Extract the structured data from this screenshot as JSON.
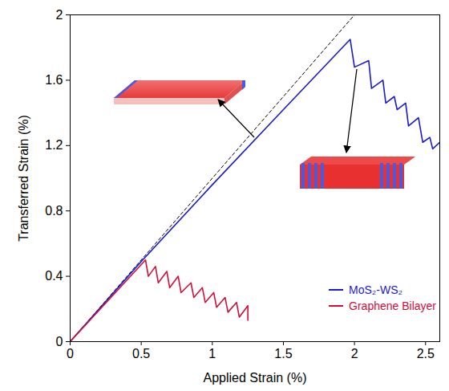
{
  "chart_data": {
    "type": "line",
    "x_label": "Applied Strain (%)",
    "y_label": "Transferred Strain (%)",
    "xlim": [
      0,
      2.6
    ],
    "xticks": [
      0,
      0.5,
      1,
      1.5,
      2,
      2.5
    ],
    "ylim": [
      0,
      2
    ],
    "yticks": [
      0,
      0.4,
      0.8,
      1.2,
      1.6,
      2
    ],
    "grid": false,
    "legend": "lower right",
    "series": [
      {
        "color": "#000000",
        "line_style": "dashed",
        "x": [
          0,
          2
        ],
        "values": [
          0,
          2
        ]
      },
      {
        "name": "MoS₂-WS₂",
        "color": "#1a1acc",
        "line_style": "solid",
        "x": [
          0,
          0.5,
          1.0,
          1.5,
          1.97,
          2.0,
          2.1,
          2.12,
          2.2,
          2.22,
          2.28,
          2.3,
          2.36,
          2.38,
          2.45,
          2.48,
          2.53,
          2.55,
          2.6
        ],
        "values": [
          0,
          0.49,
          0.96,
          1.42,
          1.85,
          1.68,
          1.72,
          1.55,
          1.6,
          1.46,
          1.5,
          1.42,
          1.46,
          1.32,
          1.37,
          1.22,
          1.25,
          1.18,
          1.22
        ]
      },
      {
        "name": "Graphene Bilayer",
        "color": "#d0103a",
        "line_style": "solid",
        "x": [
          0,
          0.53,
          0.55,
          0.6,
          0.62,
          0.68,
          0.7,
          0.76,
          0.78,
          0.85,
          0.87,
          0.93,
          0.95,
          1.01,
          1.03,
          1.09,
          1.11,
          1.17,
          1.19,
          1.25,
          1.25
        ],
        "values": [
          0,
          0.5,
          0.4,
          0.46,
          0.36,
          0.43,
          0.33,
          0.4,
          0.3,
          0.36,
          0.27,
          0.33,
          0.24,
          0.3,
          0.21,
          0.27,
          0.18,
          0.24,
          0.15,
          0.22,
          0.13
        ]
      }
    ]
  }
}
